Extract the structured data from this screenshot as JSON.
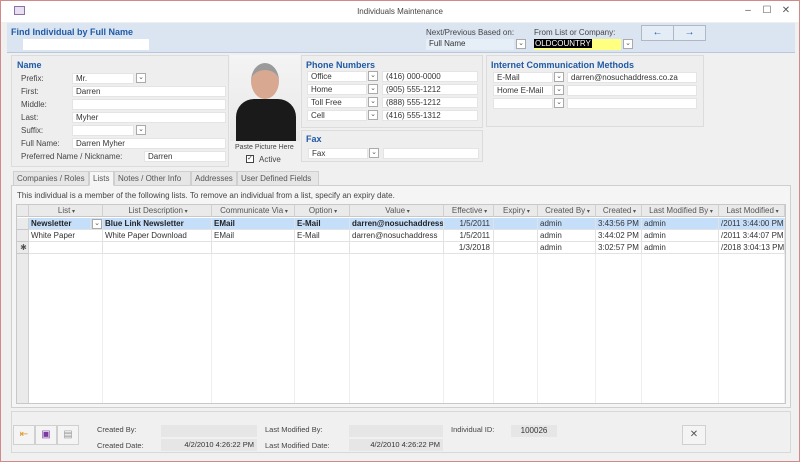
{
  "window": {
    "title": "Individuals Maintenance",
    "minimize": "–",
    "maximize": "☐",
    "close": "✕"
  },
  "header": {
    "find_label": "Find Individual by Full Name",
    "find_value": "",
    "next_prev_label": "Next/Previous Based on:",
    "next_prev_value": "Full Name",
    "from_list_label": "From List or Company:",
    "from_list_value": "OLDCOUNTRY",
    "prev_icon": "←",
    "next_icon": "→"
  },
  "name": {
    "title": "Name",
    "fields": [
      {
        "label": "Prefix:",
        "value": "Mr."
      },
      {
        "label": "First:",
        "value": "Darren"
      },
      {
        "label": "Middle:",
        "value": ""
      },
      {
        "label": "Last:",
        "value": "Myher"
      },
      {
        "label": "Suffix:",
        "value": ""
      },
      {
        "label": "Full Name:",
        "value": "Darren Myher"
      },
      {
        "label": "Preferred Name / Nickname:",
        "value": "Darren"
      }
    ]
  },
  "photo": {
    "paste_label": "Paste Picture Here",
    "active_label": "Active",
    "active": true
  },
  "phones": {
    "title": "Phone Numbers",
    "rows": [
      {
        "type": "Office",
        "number": "(416) 000-0000"
      },
      {
        "type": "Home",
        "number": "(905) 555-1212"
      },
      {
        "type": "Toll Free",
        "number": "(888) 555-1212"
      },
      {
        "type": "Cell",
        "number": "(416) 555-1312"
      }
    ]
  },
  "fax": {
    "title": "Fax",
    "type": "Fax",
    "number": ""
  },
  "internet": {
    "title": "Internet Communication Methods",
    "rows": [
      {
        "type": "E-Mail",
        "value": "darren@nosuchaddress.co.za"
      },
      {
        "type": "Home E-Mail",
        "value": ""
      },
      {
        "type": "",
        "value": ""
      }
    ]
  },
  "tabs": [
    "Companies / Roles",
    "Lists",
    "Notes / Other Info",
    "Addresses",
    "User Defined Fields"
  ],
  "active_tab": "Lists",
  "lists": {
    "info": "This individual is a member of the following lists.  To remove an individual from a list, specify an expiry date.",
    "columns": [
      "List",
      "List Description",
      "Communicate Via",
      "Option",
      "Value",
      "Effective",
      "Expiry",
      "Created By",
      "Created",
      "Last Modified By",
      "Last Modified"
    ],
    "rows": [
      [
        "Newsletter",
        "Blue Link Newsletter",
        "EMail",
        "E-Mail",
        "darren@nosuchaddress",
        "1/5/2011",
        "",
        "admin",
        "3:43:56 PM",
        "admin",
        "/2011 3:44:00 PM"
      ],
      [
        "White Paper",
        "White Paper Download",
        "EMail",
        "E-Mail",
        "darren@nosuchaddress",
        "1/5/2011",
        "",
        "admin",
        "3:44:02 PM",
        "admin",
        "/2011 3:44:07 PM"
      ],
      [
        "",
        "",
        "",
        "",
        "",
        "1/3/2018",
        "",
        "admin",
        "3:02:57 PM",
        "admin",
        "/2018 3:04:13 PM"
      ]
    ],
    "new_row_marker": "✱"
  },
  "footer": {
    "created_by_label": "Created By:",
    "created_by": "",
    "created_date_label": "Created Date:",
    "created_date": "4/2/2010 4:26:22 PM",
    "modified_by_label": "Last Modified By:",
    "modified_by": "",
    "modified_date_label": "Last Modified Date:",
    "modified_date": "4/2/2010 4:26:22 PM",
    "id_label": "Individual ID:",
    "id": "100026",
    "delete_icon": "✕"
  },
  "colors": {
    "accent": "#1f5aa6",
    "header_bg": "#dbe5f1",
    "selected_row": "#c5defa",
    "highlight": "#ffff80"
  }
}
